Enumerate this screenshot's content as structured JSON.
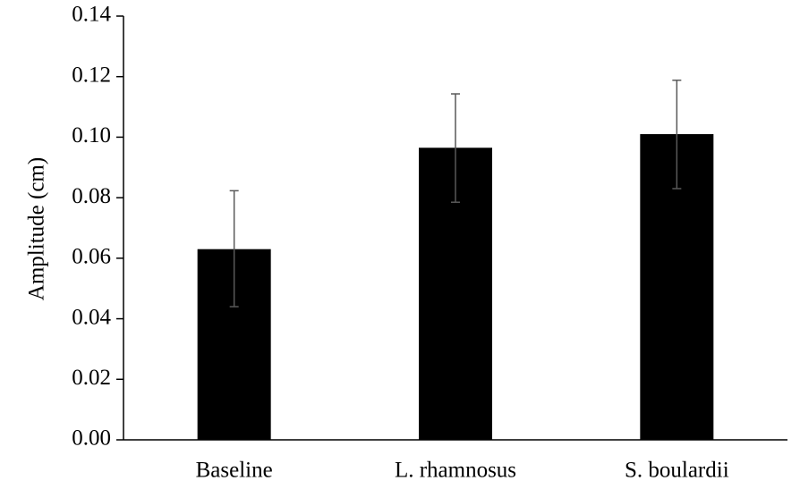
{
  "chart_data": {
    "type": "bar",
    "title": "",
    "xlabel": "",
    "ylabel": "Amplitude (cm)",
    "categories": [
      "Baseline",
      "L. rhamnosus",
      "S. boulardii"
    ],
    "values": [
      0.063,
      0.0965,
      0.101
    ],
    "error_low": [
      0.044,
      0.0785,
      0.083
    ],
    "error_high": [
      0.0823,
      0.1143,
      0.1188
    ],
    "ylim": [
      0,
      0.14
    ],
    "yticks": [
      0.0,
      0.02,
      0.04,
      0.06,
      0.08,
      0.1,
      0.12,
      0.14
    ],
    "ytick_labels": [
      "0.00",
      "0.02",
      "0.04",
      "0.06",
      "0.08",
      "0.10",
      "0.12",
      "0.14"
    ],
    "grid": false,
    "legend": "none",
    "bar_color": "#000000",
    "error_bar_color": "#595959",
    "axis_color": "#000000"
  }
}
